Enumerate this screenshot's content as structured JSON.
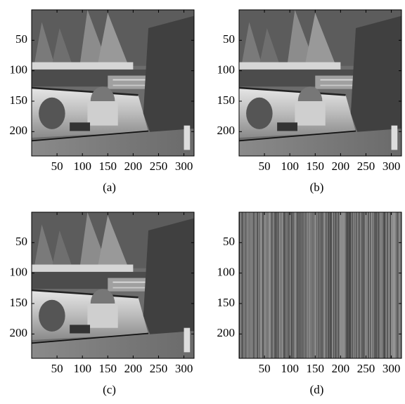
{
  "panels": [
    {
      "caption": "(a)",
      "xlim": [
        0,
        320
      ],
      "ylim": [
        0,
        240
      ],
      "xticks": [
        50,
        100,
        150,
        200,
        250,
        300
      ],
      "yticks": [
        50,
        100,
        150,
        200
      ]
    },
    {
      "caption": "(b)",
      "xlim": [
        0,
        320
      ],
      "ylim": [
        0,
        240
      ],
      "xticks": [
        50,
        100,
        150,
        200,
        250,
        300
      ],
      "yticks": [
        50,
        100,
        150,
        200
      ]
    },
    {
      "caption": "(c)",
      "xlim": [
        0,
        320
      ],
      "ylim": [
        0,
        240
      ],
      "xticks": [
        50,
        100,
        150,
        200,
        250,
        300
      ],
      "yticks": [
        50,
        100,
        150,
        200
      ]
    },
    {
      "caption": "(d)",
      "xlim": [
        0,
        320
      ],
      "ylim": [
        0,
        240
      ],
      "xticks": [
        50,
        100,
        150,
        200,
        250,
        300
      ],
      "yticks": [
        50,
        100,
        150,
        200
      ]
    }
  ]
}
